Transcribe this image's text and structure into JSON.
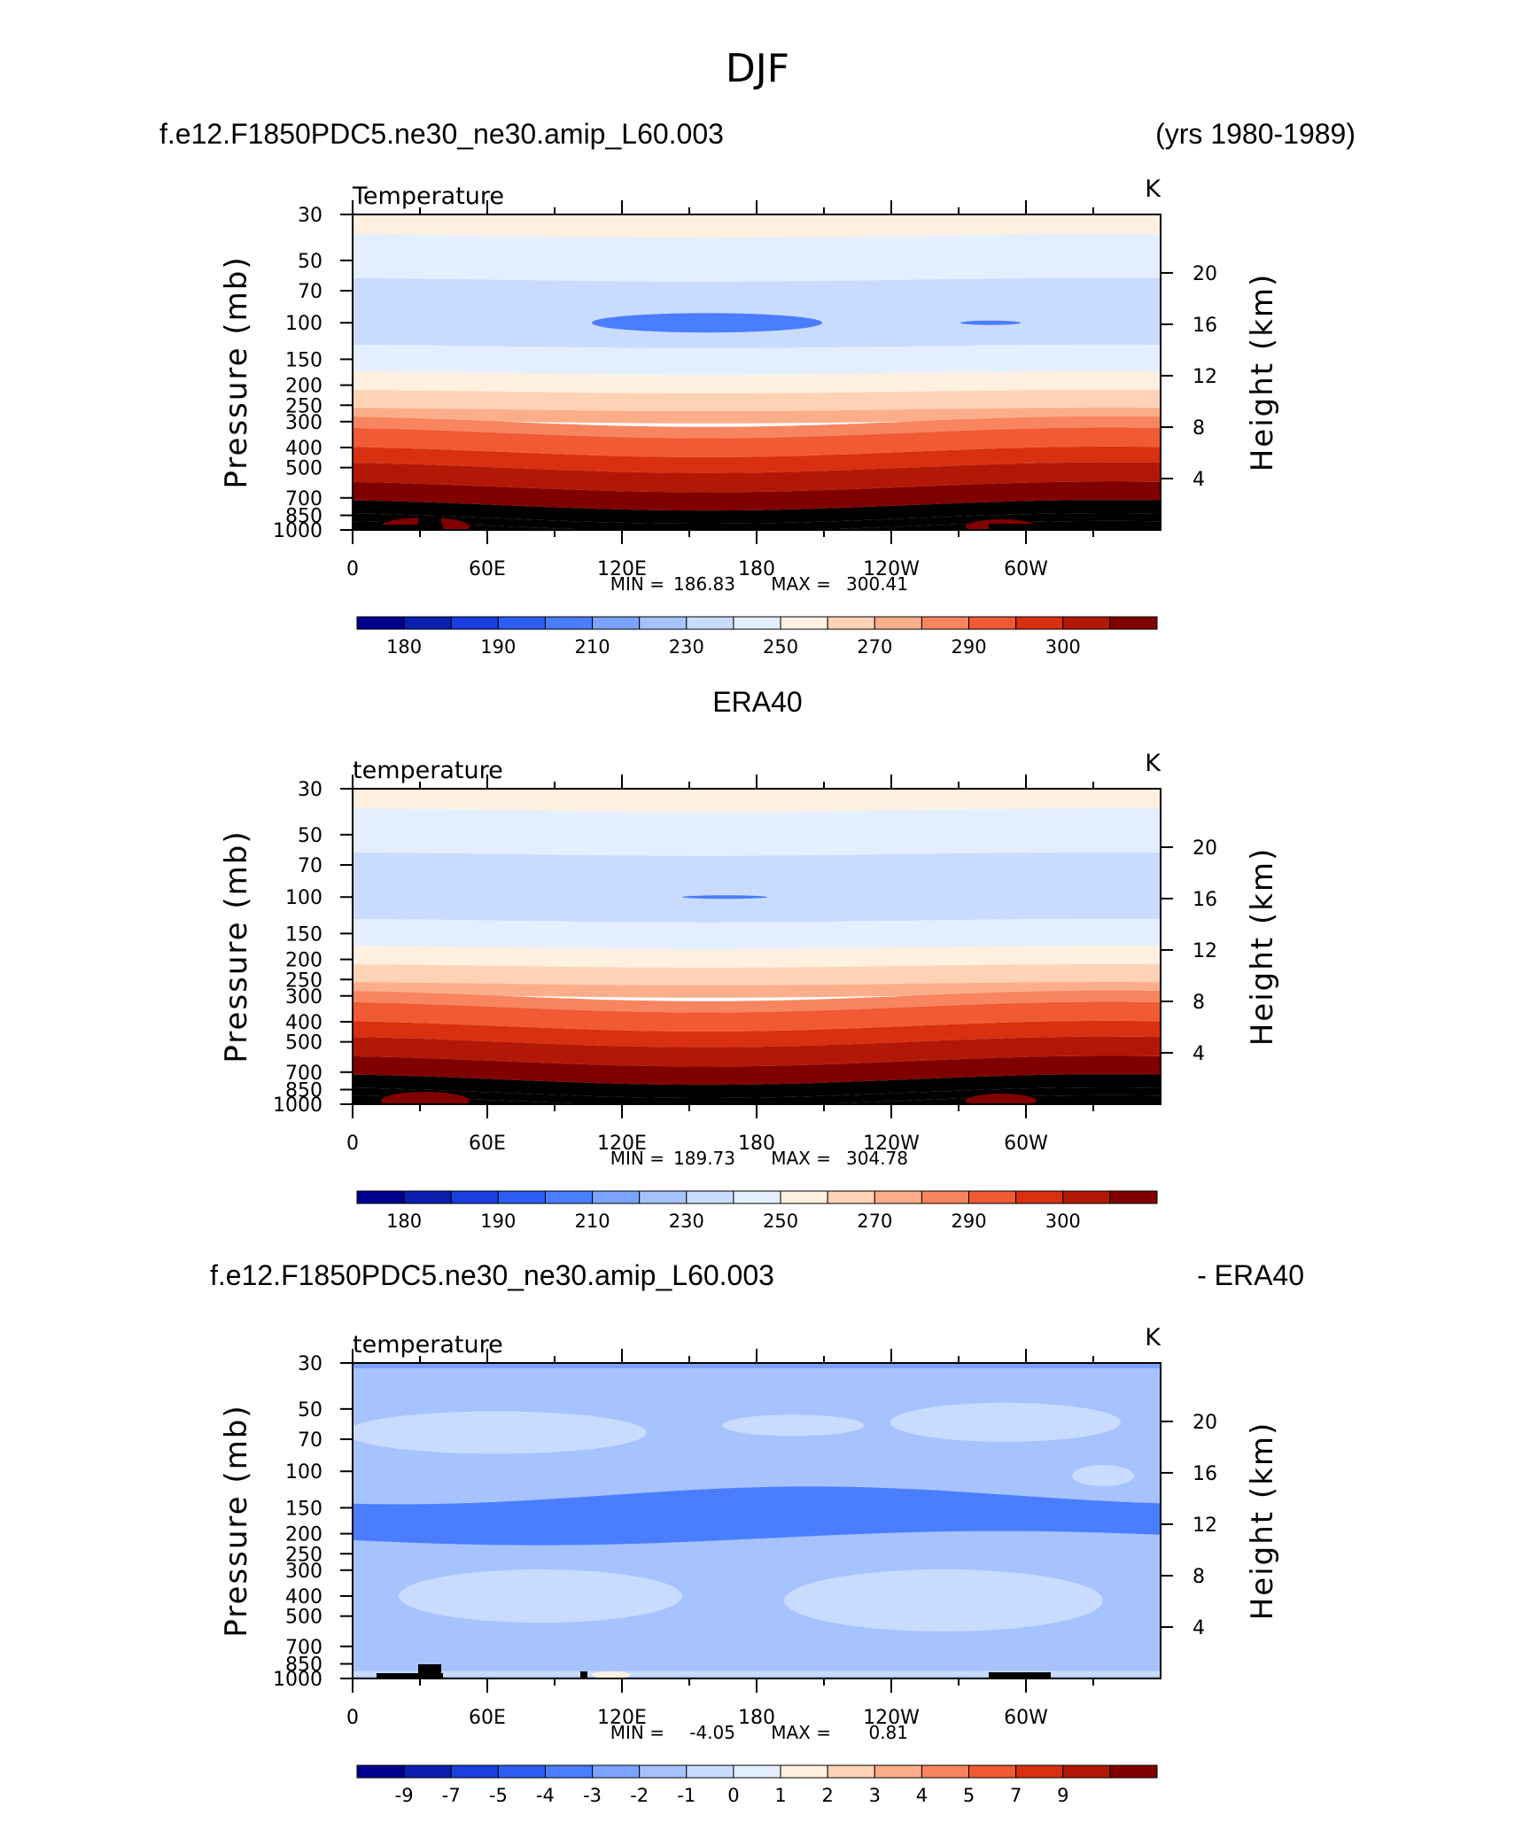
{
  "figure": {
    "title": "DJF",
    "header_left": "f.e12.F1850PDC5.ne30_ne30.amip_L60.003",
    "header_right": "(yrs 1980-1989)"
  },
  "chart_data": [
    {
      "type": "contour",
      "panel": "model",
      "title": "",
      "left_label": "Temperature",
      "right_label": "K",
      "xlabel": "",
      "ylabel": "Pressure (mb)",
      "ylabel_right": "Height (km)",
      "x_ticks": [
        "0",
        "60E",
        "120E",
        "180",
        "120W",
        "60W"
      ],
      "y_ticks": [
        "30",
        "50",
        "70",
        "100",
        "150",
        "200",
        "250",
        "300",
        "400",
        "500",
        "700",
        "850",
        "1000"
      ],
      "y_ticks_right": [
        "20",
        "16",
        "12",
        "8",
        "4"
      ],
      "min_label": "MIN =",
      "min_value": "186.83",
      "max_label": "MAX =",
      "max_value": "300.41",
      "colorbar_colors": [
        "#00008f",
        "#0a1fb0",
        "#1a3ee0",
        "#2e5df5",
        "#4a7dff",
        "#7ca3ff",
        "#a6c2ff",
        "#c9dcff",
        "#e3efff",
        "#fff0e0",
        "#fdd2b5",
        "#fcae8a",
        "#f8855f",
        "#f05a35",
        "#d83010",
        "#b31806",
        "#800000"
      ],
      "colorbar_labels": [
        "180",
        "190",
        "210",
        "230",
        "250",
        "270",
        "290",
        "300"
      ]
    },
    {
      "type": "contour",
      "panel": "obs",
      "title": "ERA40",
      "left_label": "temperature",
      "right_label": "K",
      "xlabel": "",
      "ylabel": "Pressure (mb)",
      "ylabel_right": "Height (km)",
      "x_ticks": [
        "0",
        "60E",
        "120E",
        "180",
        "120W",
        "60W"
      ],
      "y_ticks": [
        "30",
        "50",
        "70",
        "100",
        "150",
        "200",
        "250",
        "300",
        "400",
        "500",
        "700",
        "850",
        "1000"
      ],
      "y_ticks_right": [
        "20",
        "16",
        "12",
        "8",
        "4"
      ],
      "min_label": "MIN =",
      "min_value": "189.73",
      "max_label": "MAX =",
      "max_value": "304.78",
      "colorbar_colors": [
        "#00008f",
        "#0a1fb0",
        "#1a3ee0",
        "#2e5df5",
        "#4a7dff",
        "#7ca3ff",
        "#a6c2ff",
        "#c9dcff",
        "#e3efff",
        "#fff0e0",
        "#fdd2b5",
        "#fcae8a",
        "#f8855f",
        "#f05a35",
        "#d83010",
        "#b31806",
        "#800000"
      ],
      "colorbar_labels": [
        "180",
        "190",
        "210",
        "230",
        "250",
        "270",
        "290",
        "300"
      ]
    },
    {
      "type": "contour",
      "panel": "difference",
      "title_left": "f.e12.F1850PDC5.ne30_ne30.amip_L60.003",
      "title_right": "- ERA40",
      "left_label": "temperature",
      "right_label": "K",
      "xlabel": "",
      "ylabel": "Pressure (mb)",
      "ylabel_right": "Height (km)",
      "x_ticks": [
        "0",
        "60E",
        "120E",
        "180",
        "120W",
        "60W"
      ],
      "y_ticks": [
        "30",
        "50",
        "70",
        "100",
        "150",
        "200",
        "250",
        "300",
        "400",
        "500",
        "700",
        "850",
        "1000"
      ],
      "y_ticks_right": [
        "20",
        "16",
        "12",
        "8",
        "4"
      ],
      "min_label": "MIN =",
      "min_value": "-4.05",
      "max_label": "MAX =",
      "max_value": "0.81",
      "colorbar_colors": [
        "#00008f",
        "#0a1fb0",
        "#1a3ee0",
        "#2e5df5",
        "#4a7dff",
        "#7ca3ff",
        "#a6c2ff",
        "#c9dcff",
        "#e3efff",
        "#fff0e0",
        "#fdd2b5",
        "#fcae8a",
        "#f8855f",
        "#f05a35",
        "#d83010",
        "#b31806",
        "#800000"
      ],
      "colorbar_labels": [
        "-9",
        "-7",
        "-5",
        "-4",
        "-3",
        "-2",
        "-1",
        "0",
        "1",
        "2",
        "3",
        "4",
        "5",
        "7",
        "9"
      ]
    }
  ]
}
